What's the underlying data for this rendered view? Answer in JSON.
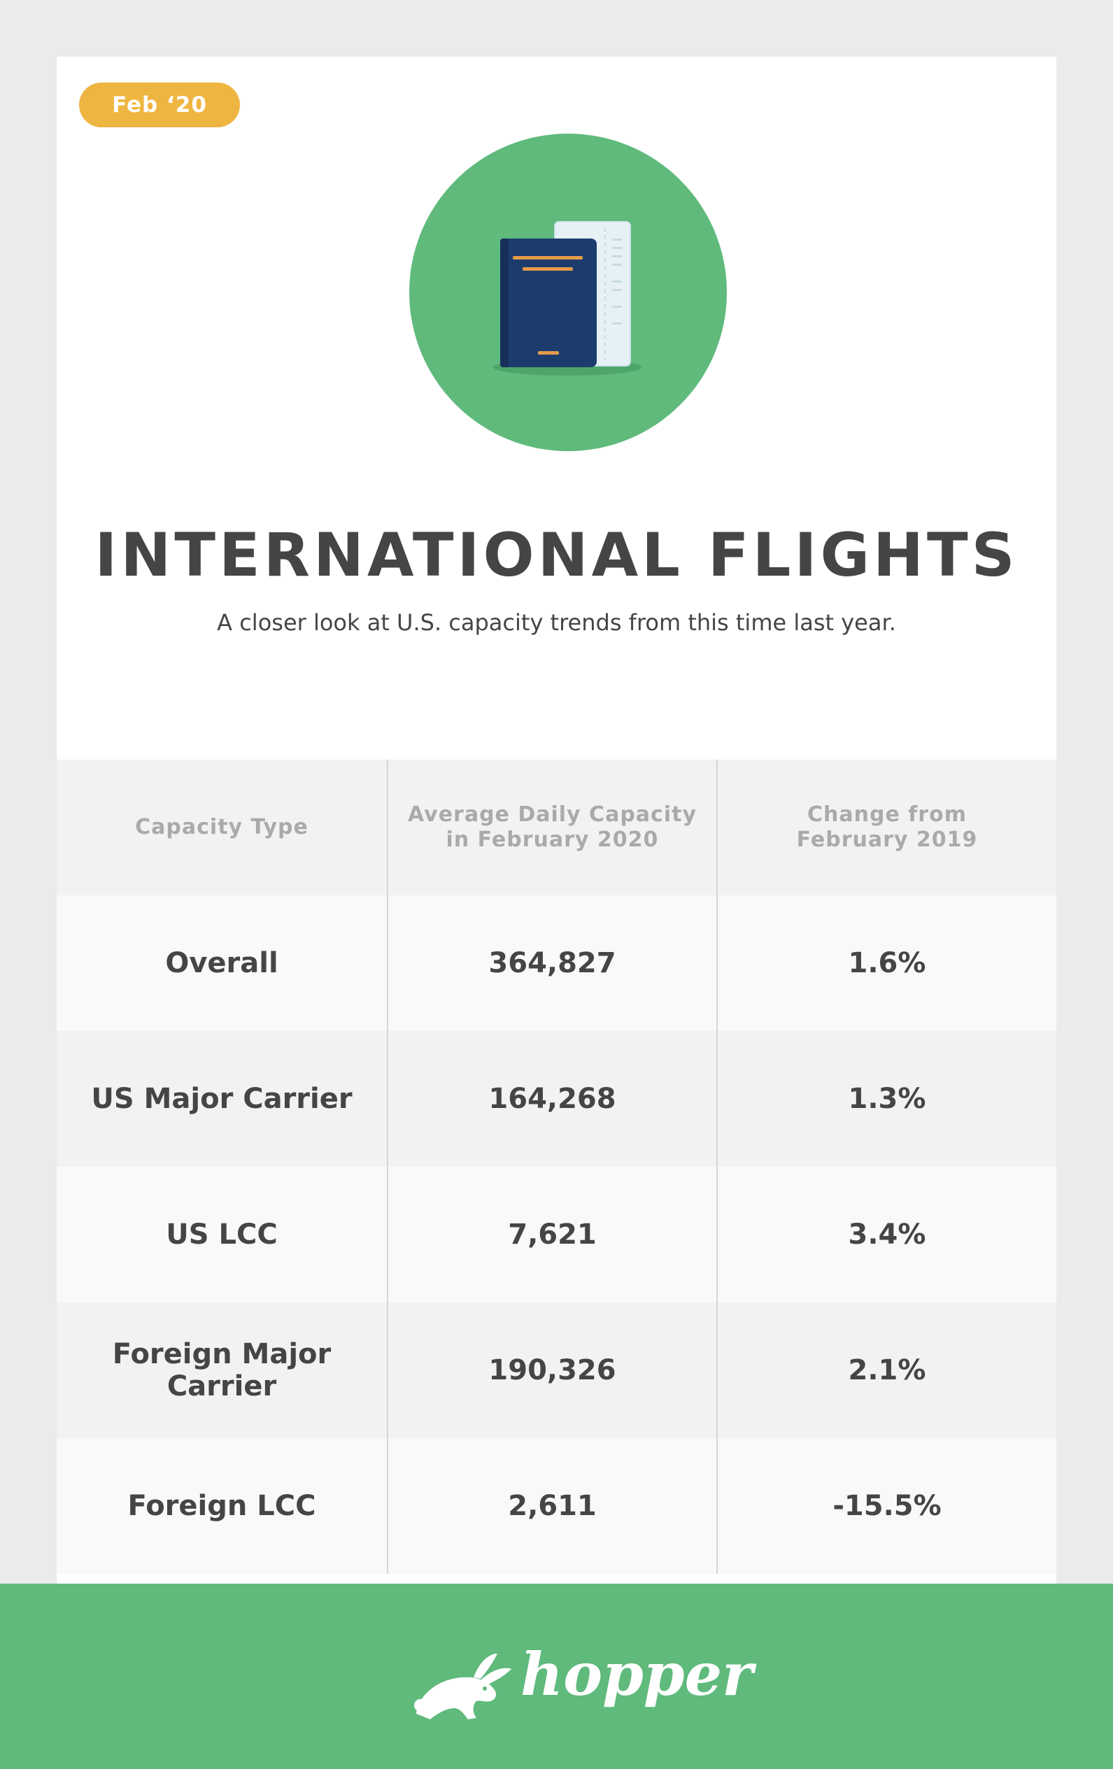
{
  "badge": {
    "label": "Feb ‘20"
  },
  "hero": {
    "icon": "passport-ticket-icon"
  },
  "header": {
    "title": "INTERNATIONAL FLIGHTS",
    "subtitle": "A closer look at U.S. capacity trends from this time last year."
  },
  "table": {
    "headers": [
      "Capacity Type",
      "Average Daily Capacity\nin February 2020",
      "Change from\nFebruary 2019"
    ],
    "rows": [
      [
        "Overall",
        "364,827",
        "1.6%"
      ],
      [
        "US Major Carrier",
        "164,268",
        "1.3%"
      ],
      [
        "US LCC",
        "7,621",
        "3.4%"
      ],
      [
        "Foreign Major Carrier",
        "190,326",
        "2.1%"
      ],
      [
        "Foreign LCC",
        "2,611",
        "-15.5%"
      ]
    ]
  },
  "footer": {
    "brand": "hopper",
    "icon": "hopper-bunny-icon"
  },
  "colors": {
    "accent_green": "#5fba7c",
    "badge_yellow": "#efb541",
    "text_dark": "#454545",
    "header_text": "#aaaaaa"
  }
}
